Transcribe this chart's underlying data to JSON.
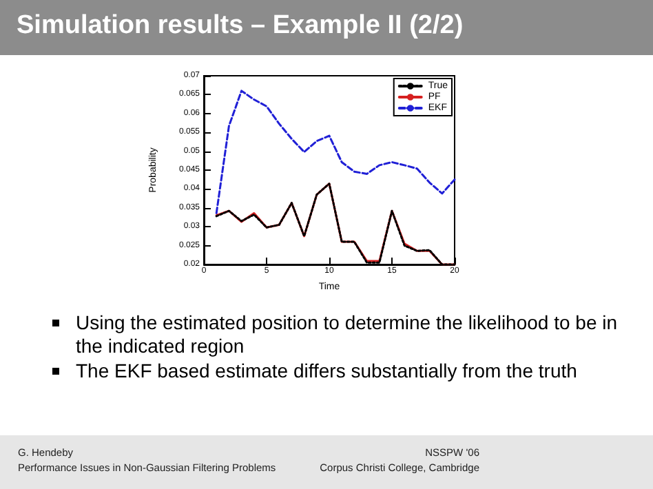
{
  "chart_data": {
    "type": "line",
    "title": "Simulation results – Example II (2/2)",
    "xlabel": "Time",
    "ylabel": "Probability",
    "x": [
      1,
      2,
      3,
      4,
      5,
      6,
      7,
      8,
      9,
      10,
      11,
      12,
      13,
      14,
      15,
      16,
      17,
      18,
      19,
      20
    ],
    "series": [
      {
        "name": "True",
        "color": "#000000",
        "line_style": "dotted",
        "values": [
          0.0328,
          0.0342,
          0.0315,
          0.0332,
          0.0298,
          0.0305,
          0.0363,
          0.0275,
          0.0385,
          0.0414,
          0.026,
          0.026,
          0.0205,
          0.0205,
          0.0342,
          0.025,
          0.0236,
          0.0238,
          0.02,
          0.02
        ]
      },
      {
        "name": "PF",
        "color": "#d62020",
        "line_style": "solid",
        "values": [
          0.033,
          0.0342,
          0.0313,
          0.0336,
          0.0298,
          0.0305,
          0.0363,
          0.0275,
          0.0385,
          0.0414,
          0.026,
          0.026,
          0.0209,
          0.0209,
          0.0342,
          0.0255,
          0.0236,
          0.0236,
          0.02,
          0.02
        ]
      },
      {
        "name": "EKF",
        "color": "#2020d6",
        "line_style": "dashed",
        "values": [
          0.0336,
          0.0567,
          0.066,
          0.0637,
          0.0619,
          0.0573,
          0.0533,
          0.0498,
          0.0527,
          0.0541,
          0.0471,
          0.0446,
          0.044,
          0.0463,
          0.0471,
          0.0463,
          0.0454,
          0.0417,
          0.0388,
          0.0425
        ]
      }
    ],
    "xlim": [
      0,
      20
    ],
    "xticks": [
      0,
      5,
      10,
      15,
      20
    ],
    "ylim": [
      0.02,
      0.07
    ],
    "yticks": [
      0.02,
      0.025,
      0.03,
      0.035,
      0.04,
      0.045,
      0.05,
      0.055,
      0.06,
      0.065,
      0.07
    ],
    "grid": false,
    "legend": "top right",
    "marker": "none",
    "annotations": [
      "Using the estimated position to determine the likelihood to be in the indicated region",
      "The EKF based estimate differs substantially from the truth",
      "G. Hendeby",
      "Performance Issues in Non-Gaussian Filtering Problems",
      "NSSPW '06",
      "Corpus Christi College, Cambridge"
    ]
  }
}
